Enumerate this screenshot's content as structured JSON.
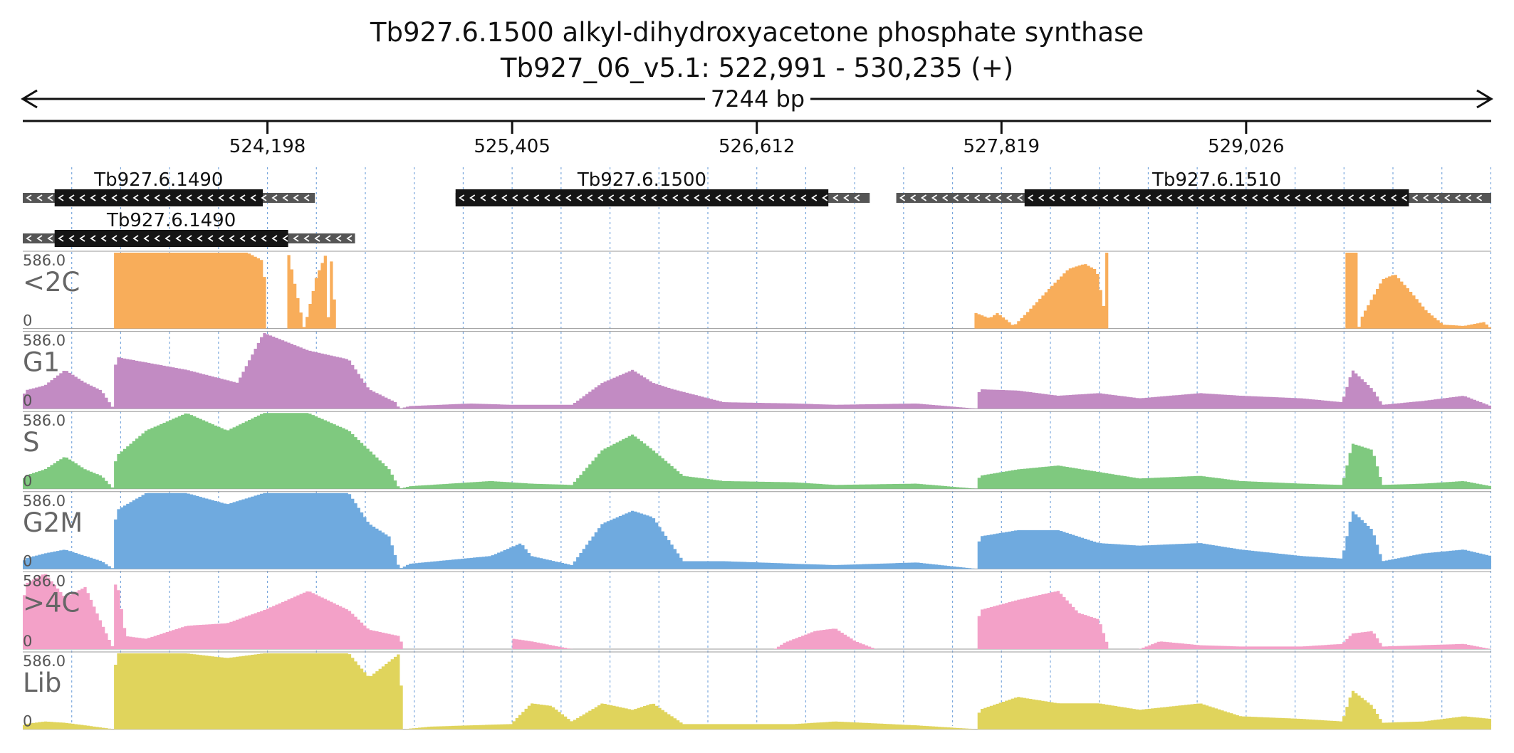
{
  "chart_data": {
    "type": "area",
    "title": "Tb927.6.1500  alkyl-dihydroxyacetone phosphate synthase",
    "subtitle": "Tb927_06_v5.1: 522,991 - 530,235 (+)",
    "span_label": "7244 bp",
    "xlim": [
      522991,
      530235
    ],
    "xticks": [
      524198,
      525405,
      526612,
      527819,
      529026
    ],
    "xtick_labels": [
      "524,198",
      "525,405",
      "526,612",
      "527,819",
      "529,026"
    ],
    "ylim": [
      0,
      586.0
    ],
    "ymax_label": "586.0",
    "ymin_label": "0",
    "genes": [
      {
        "name": "Tb927.6.1490",
        "row": 0,
        "utr": [
          522991,
          524432
        ],
        "cds": [
          523148,
          524175
        ],
        "strand": "-"
      },
      {
        "name": "Tb927.6.1500",
        "row": 0,
        "utr": [
          525126,
          527169
        ],
        "cds": [
          525126,
          526965
        ],
        "strand": "-"
      },
      {
        "name": "Tb927.6.1510",
        "row": 0,
        "utr": [
          527300,
          530235
        ],
        "cds": [
          527933,
          529829
        ],
        "strand": "-"
      },
      {
        "name": "Tb927.6.1490",
        "row": 1,
        "utr": [
          522991,
          524630
        ],
        "cds": [
          523148,
          524300
        ],
        "strand": "-"
      }
    ],
    "series": [
      {
        "name": "<2C",
        "color": "#f8ad5a",
        "knots": [
          [
            522991,
            0
          ],
          [
            523440,
            0
          ],
          [
            523441,
            586
          ],
          [
            524100,
            586
          ],
          [
            524180,
            520
          ],
          [
            524195,
            0
          ],
          [
            524300,
            0
          ],
          [
            524301,
            586
          ],
          [
            524360,
            150
          ],
          [
            524380,
            0
          ],
          [
            524440,
            400
          ],
          [
            524490,
            586
          ],
          [
            524500,
            0
          ],
          [
            524510,
            586
          ],
          [
            524540,
            0
          ],
          [
            524870,
            0
          ],
          [
            527691,
            0
          ],
          [
            527692,
            120
          ],
          [
            527760,
            80
          ],
          [
            527800,
            120
          ],
          [
            527850,
            60
          ],
          [
            527880,
            20
          ],
          [
            527950,
            130
          ],
          [
            528050,
            300
          ],
          [
            528150,
            460
          ],
          [
            528230,
            500
          ],
          [
            528290,
            450
          ],
          [
            528330,
            120
          ],
          [
            528335,
            586
          ],
          [
            528330,
            586
          ],
          [
            528350,
            586
          ],
          [
            528351,
            0
          ],
          [
            529520,
            0
          ],
          [
            529521,
            586
          ],
          [
            529580,
            586
          ],
          [
            529581,
            0
          ],
          [
            529600,
            100
          ],
          [
            529700,
            380
          ],
          [
            529760,
            420
          ],
          [
            529830,
            300
          ],
          [
            529920,
            130
          ],
          [
            530000,
            30
          ],
          [
            530100,
            20
          ],
          [
            530200,
            50
          ],
          [
            530235,
            0
          ]
        ]
      },
      {
        "name": "G1",
        "color": "#c28bc3",
        "knots": [
          [
            522991,
            0
          ],
          [
            523000,
            140
          ],
          [
            523100,
            180
          ],
          [
            523200,
            300
          ],
          [
            523300,
            200
          ],
          [
            523380,
            140
          ],
          [
            523440,
            0
          ],
          [
            523450,
            400
          ],
          [
            523800,
            300
          ],
          [
            524050,
            200
          ],
          [
            524180,
            586
          ],
          [
            524400,
            450
          ],
          [
            524600,
            380
          ],
          [
            524700,
            150
          ],
          [
            524830,
            50
          ],
          [
            524850,
            0
          ],
          [
            524900,
            20
          ],
          [
            525200,
            40
          ],
          [
            525400,
            30
          ],
          [
            525700,
            30
          ],
          [
            525850,
            200
          ],
          [
            526000,
            300
          ],
          [
            526100,
            200
          ],
          [
            526200,
            150
          ],
          [
            526450,
            50
          ],
          [
            526800,
            40
          ],
          [
            527000,
            30
          ],
          [
            527400,
            40
          ],
          [
            527700,
            0
          ],
          [
            527710,
            150
          ],
          [
            527900,
            140
          ],
          [
            528100,
            100
          ],
          [
            528300,
            120
          ],
          [
            528500,
            80
          ],
          [
            528800,
            120
          ],
          [
            529000,
            100
          ],
          [
            529300,
            80
          ],
          [
            529500,
            50
          ],
          [
            529550,
            300
          ],
          [
            529650,
            150
          ],
          [
            529700,
            30
          ],
          [
            529900,
            60
          ],
          [
            530100,
            100
          ],
          [
            530235,
            20
          ]
        ]
      },
      {
        "name": "S",
        "color": "#7fc97f",
        "knots": [
          [
            522991,
            0
          ],
          [
            523000,
            100
          ],
          [
            523100,
            150
          ],
          [
            523200,
            250
          ],
          [
            523300,
            150
          ],
          [
            523380,
            100
          ],
          [
            523440,
            0
          ],
          [
            523450,
            250
          ],
          [
            523600,
            450
          ],
          [
            523800,
            586
          ],
          [
            524000,
            450
          ],
          [
            524180,
            586
          ],
          [
            524400,
            586
          ],
          [
            524600,
            450
          ],
          [
            524700,
            300
          ],
          [
            524800,
            150
          ],
          [
            524850,
            0
          ],
          [
            524900,
            20
          ],
          [
            525300,
            60
          ],
          [
            525500,
            40
          ],
          [
            525700,
            30
          ],
          [
            525850,
            300
          ],
          [
            526000,
            420
          ],
          [
            526100,
            300
          ],
          [
            526250,
            100
          ],
          [
            526450,
            60
          ],
          [
            526800,
            50
          ],
          [
            527000,
            30
          ],
          [
            527400,
            40
          ],
          [
            527700,
            0
          ],
          [
            527710,
            100
          ],
          [
            527900,
            150
          ],
          [
            528100,
            180
          ],
          [
            528300,
            130
          ],
          [
            528500,
            80
          ],
          [
            528800,
            100
          ],
          [
            529000,
            60
          ],
          [
            529300,
            40
          ],
          [
            529500,
            30
          ],
          [
            529550,
            350
          ],
          [
            529650,
            300
          ],
          [
            529700,
            30
          ],
          [
            529900,
            40
          ],
          [
            530100,
            60
          ],
          [
            530235,
            20
          ]
        ]
      },
      {
        "name": "G2M",
        "color": "#6faadf",
        "knots": [
          [
            522991,
            0
          ],
          [
            523000,
            80
          ],
          [
            523100,
            120
          ],
          [
            523200,
            150
          ],
          [
            523300,
            100
          ],
          [
            523380,
            60
          ],
          [
            523440,
            0
          ],
          [
            523450,
            450
          ],
          [
            523600,
            586
          ],
          [
            523800,
            586
          ],
          [
            524000,
            500
          ],
          [
            524180,
            586
          ],
          [
            524400,
            586
          ],
          [
            524600,
            586
          ],
          [
            524700,
            350
          ],
          [
            524800,
            250
          ],
          [
            524850,
            0
          ],
          [
            524900,
            40
          ],
          [
            525300,
            100
          ],
          [
            525450,
            200
          ],
          [
            525500,
            100
          ],
          [
            525700,
            30
          ],
          [
            525850,
            350
          ],
          [
            526000,
            450
          ],
          [
            526100,
            400
          ],
          [
            526250,
            60
          ],
          [
            526450,
            60
          ],
          [
            526800,
            40
          ],
          [
            527000,
            30
          ],
          [
            527400,
            50
          ],
          [
            527700,
            0
          ],
          [
            527710,
            250
          ],
          [
            527900,
            300
          ],
          [
            528100,
            300
          ],
          [
            528300,
            200
          ],
          [
            528500,
            180
          ],
          [
            528800,
            200
          ],
          [
            529000,
            150
          ],
          [
            529300,
            100
          ],
          [
            529500,
            80
          ],
          [
            529550,
            450
          ],
          [
            529650,
            300
          ],
          [
            529700,
            60
          ],
          [
            529900,
            120
          ],
          [
            530100,
            150
          ],
          [
            530235,
            100
          ]
        ]
      },
      {
        "name": ">4C",
        "color": "#f3a1c8",
        "knots": [
          [
            522991,
            0
          ],
          [
            523000,
            500
          ],
          [
            523100,
            586
          ],
          [
            523200,
            400
          ],
          [
            523300,
            480
          ],
          [
            523380,
            200
          ],
          [
            523440,
            0
          ],
          [
            523450,
            586
          ],
          [
            523500,
            100
          ],
          [
            523600,
            80
          ],
          [
            523800,
            180
          ],
          [
            524000,
            200
          ],
          [
            524180,
            300
          ],
          [
            524400,
            450
          ],
          [
            524600,
            300
          ],
          [
            524700,
            150
          ],
          [
            524850,
            100
          ],
          [
            524870,
            0
          ],
          [
            525400,
            0
          ],
          [
            525410,
            80
          ],
          [
            525500,
            60
          ],
          [
            525700,
            0
          ],
          [
            526300,
            0
          ],
          [
            526700,
            0
          ],
          [
            526750,
            50
          ],
          [
            526900,
            140
          ],
          [
            527000,
            160
          ],
          [
            527100,
            60
          ],
          [
            527200,
            0
          ],
          [
            527700,
            0
          ],
          [
            527710,
            300
          ],
          [
            527900,
            380
          ],
          [
            528100,
            450
          ],
          [
            528200,
            280
          ],
          [
            528300,
            230
          ],
          [
            528351,
            0
          ],
          [
            528500,
            0
          ],
          [
            528600,
            60
          ],
          [
            528800,
            30
          ],
          [
            529000,
            20
          ],
          [
            529300,
            20
          ],
          [
            529500,
            40
          ],
          [
            529550,
            120
          ],
          [
            529650,
            140
          ],
          [
            529700,
            20
          ],
          [
            529900,
            30
          ],
          [
            530100,
            40
          ],
          [
            530235,
            0
          ]
        ]
      },
      {
        "name": "Lib",
        "color": "#e0d45c",
        "knots": [
          [
            522991,
            0
          ],
          [
            523000,
            40
          ],
          [
            523100,
            60
          ],
          [
            523200,
            50
          ],
          [
            523300,
            30
          ],
          [
            523440,
            0
          ],
          [
            523450,
            586
          ],
          [
            523600,
            586
          ],
          [
            523800,
            586
          ],
          [
            524000,
            550
          ],
          [
            524180,
            586
          ],
          [
            524400,
            586
          ],
          [
            524600,
            586
          ],
          [
            524700,
            400
          ],
          [
            524850,
            586
          ],
          [
            524870,
            0
          ],
          [
            525000,
            20
          ],
          [
            525400,
            40
          ],
          [
            525500,
            200
          ],
          [
            525600,
            180
          ],
          [
            525700,
            60
          ],
          [
            525850,
            200
          ],
          [
            526000,
            150
          ],
          [
            526100,
            200
          ],
          [
            526250,
            40
          ],
          [
            526450,
            40
          ],
          [
            526800,
            40
          ],
          [
            527000,
            60
          ],
          [
            527400,
            30
          ],
          [
            527700,
            0
          ],
          [
            527710,
            150
          ],
          [
            527900,
            250
          ],
          [
            528100,
            200
          ],
          [
            528300,
            200
          ],
          [
            528500,
            150
          ],
          [
            528800,
            200
          ],
          [
            529000,
            100
          ],
          [
            529300,
            80
          ],
          [
            529500,
            60
          ],
          [
            529550,
            300
          ],
          [
            529650,
            180
          ],
          [
            529700,
            50
          ],
          [
            529900,
            60
          ],
          [
            530100,
            100
          ],
          [
            530235,
            80
          ]
        ]
      }
    ]
  }
}
